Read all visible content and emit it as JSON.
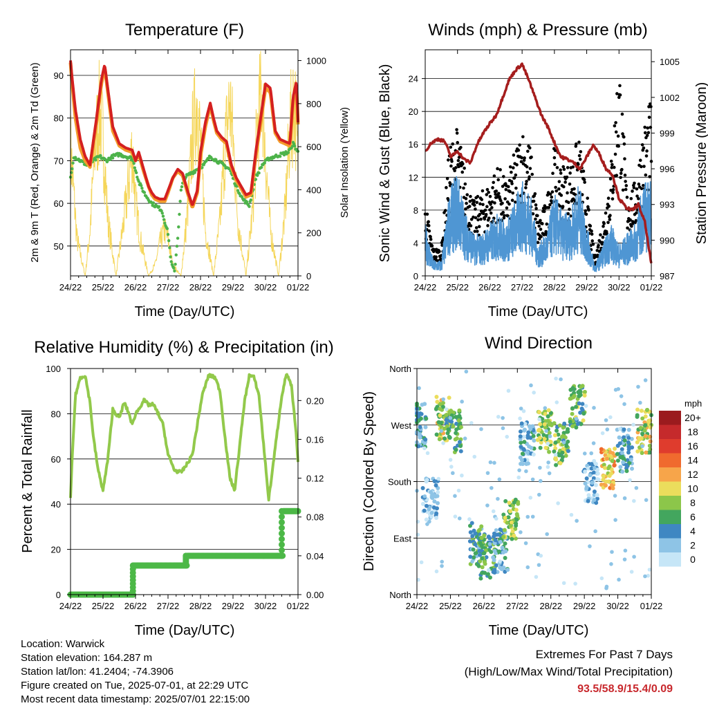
{
  "chart_data": [
    {
      "type": "line",
      "title": "Temperature (F)",
      "xlabel": "Time (Day/UTC)",
      "ylabel_left": "2m & 9m T (Red, Orange) & 2m Td (Green)",
      "ylabel_right": "Solar Insolation (Yellow)",
      "x_ticks": [
        "24/22",
        "25/22",
        "26/22",
        "27/22",
        "28/22",
        "29/22",
        "30/22",
        "01/22"
      ],
      "ylim_left": [
        43,
        96
      ],
      "y_ticks_left": [
        50,
        60,
        70,
        80,
        90
      ],
      "ylim_right": [
        0,
        1050
      ],
      "y_ticks_right": [
        0,
        200,
        400,
        600,
        800,
        1000
      ],
      "grid": true,
      "colors": {
        "t2m": "#d42020",
        "t9m": "#f49b2a",
        "dewpoint": "#4db34a",
        "solar": "#f5d65a"
      },
      "series": [
        {
          "name": "2m T",
          "x": [
            0,
            0.04,
            0.15,
            0.3,
            0.45,
            0.6,
            0.8,
            0.95,
            1.05,
            1.3,
            1.5,
            1.7,
            1.9,
            2.0,
            2.1,
            2.25,
            2.4,
            2.5,
            2.6,
            2.75,
            2.9,
            3.0,
            3.15,
            3.3,
            3.45,
            3.6,
            3.75,
            3.9,
            4.0,
            4.15,
            4.3,
            4.4,
            4.5,
            4.65,
            4.8,
            4.95,
            5.1,
            5.25,
            5.4,
            5.55,
            5.7,
            5.85,
            6.0,
            6.15,
            6.3,
            6.45,
            6.6,
            6.75,
            6.85,
            6.95,
            7.0
          ],
          "values": [
            93.5,
            90,
            82,
            75,
            71,
            69,
            80,
            89,
            92.5,
            78,
            74,
            73,
            72.5,
            70,
            72,
            68,
            64,
            62.5,
            61.5,
            61,
            61,
            63,
            66,
            68,
            67,
            63,
            59.5,
            63,
            72,
            79,
            83.5,
            80,
            77,
            75.5,
            74.5,
            69,
            66,
            64,
            62,
            62.5,
            72,
            80,
            88,
            87,
            77,
            75,
            74.5,
            74,
            85,
            88.5,
            79
          ]
        },
        {
          "name": "9m T",
          "x": [
            0,
            0.04,
            0.15,
            0.3,
            0.45,
            0.6,
            0.8,
            0.95,
            1.05,
            1.3,
            1.5,
            1.7,
            1.9,
            2.0,
            2.1,
            2.25,
            2.4,
            2.5,
            2.6,
            2.75,
            2.9,
            3.0,
            3.15,
            3.3,
            3.45,
            3.6,
            3.75,
            3.9,
            4.0,
            4.15,
            4.3,
            4.4,
            4.5,
            4.65,
            4.8,
            4.95,
            5.1,
            5.25,
            5.4,
            5.55,
            5.7,
            5.85,
            6.0,
            6.15,
            6.3,
            6.45,
            6.6,
            6.75,
            6.85,
            6.95,
            7.0
          ],
          "values": [
            93,
            89,
            80,
            73,
            70,
            68.5,
            79,
            88,
            92,
            77,
            73.5,
            72.5,
            72,
            70,
            71.5,
            67.5,
            64,
            62,
            61,
            60.5,
            60.5,
            62.5,
            66,
            67.5,
            66.5,
            62.5,
            59,
            62.5,
            71,
            78,
            83,
            79.5,
            76.5,
            75,
            74,
            68.5,
            65.5,
            63.5,
            61.5,
            62,
            71,
            79,
            87,
            86,
            76.5,
            74.5,
            74,
            73.5,
            84,
            88,
            78.5
          ]
        },
        {
          "name": "2m Td",
          "x": [
            0,
            0.1,
            0.3,
            0.5,
            0.7,
            0.9,
            1.1,
            1.3,
            1.5,
            1.7,
            1.9,
            2.0,
            2.1,
            2.3,
            2.5,
            2.7,
            2.8,
            3.0,
            3.1,
            3.2,
            3.3,
            3.4,
            3.5,
            3.7,
            3.9,
            4.1,
            4.3,
            4.5,
            4.7,
            4.9,
            5.1,
            5.3,
            5.5,
            5.7,
            5.9,
            6.1,
            6.3,
            6.5,
            6.7,
            6.85,
            7.0
          ],
          "values": [
            66,
            71,
            70,
            69,
            70,
            71,
            70,
            71,
            71.5,
            71,
            70.5,
            68,
            65,
            62,
            60,
            59,
            58.5,
            53,
            46,
            44,
            52,
            63,
            66,
            67,
            68,
            69,
            71,
            70,
            69,
            68,
            64,
            61,
            59.5,
            66,
            69,
            70.5,
            71,
            71.5,
            72,
            74,
            72
          ]
        },
        {
          "name": "Solar Insolation",
          "axis": "right",
          "x": [
            0,
            0.2,
            0.45,
            0.6,
            0.75,
            0.9,
            1.0,
            1.15,
            1.4,
            1.6,
            1.75,
            1.9,
            2.0,
            2.15,
            2.4,
            2.6,
            2.75,
            2.9,
            3.0,
            3.15,
            3.4,
            3.6,
            3.75,
            3.9,
            4.0,
            4.15,
            4.4,
            4.6,
            4.75,
            4.9,
            5.0,
            5.15,
            5.4,
            5.6,
            5.75,
            5.9,
            6.0,
            6.15,
            6.4,
            6.6,
            6.75,
            6.9,
            7.0
          ],
          "values": [
            700,
            200,
            0,
            250,
            700,
            900,
            750,
            300,
            0,
            250,
            450,
            700,
            400,
            200,
            0,
            60,
            180,
            250,
            200,
            60,
            0,
            350,
            750,
            980,
            700,
            250,
            0,
            300,
            700,
            950,
            750,
            300,
            0,
            350,
            800,
            1030,
            650,
            250,
            0,
            350,
            800,
            980,
            600
          ]
        }
      ]
    },
    {
      "type": "scatter",
      "title": "Winds (mph) & Pressure (mb)",
      "xlabel": "Time (Day/UTC)",
      "ylabel_left": "Sonic Wind & Gust (Blue, Black)",
      "ylabel_right": "Station Pressure (Maroon)",
      "x_ticks": [
        "24/22",
        "25/22",
        "26/22",
        "27/22",
        "28/22",
        "29/22",
        "30/22",
        "01/22"
      ],
      "ylim_left": [
        0,
        27.5
      ],
      "y_ticks_left": [
        0,
        4,
        8,
        12,
        16,
        20,
        24
      ],
      "ylim_right": [
        987,
        1006
      ],
      "y_ticks_right": [
        987,
        990,
        993,
        996,
        999,
        1002,
        1005
      ],
      "grid": true,
      "colors": {
        "wind": "#4f96d3",
        "gust": "#000000",
        "pressure": "#a51d1d"
      },
      "series": [
        {
          "name": "Sonic Wind",
          "x": [
            0,
            0.25,
            0.5,
            0.75,
            1.0,
            1.25,
            1.5,
            1.75,
            2.0,
            2.25,
            2.5,
            2.75,
            3.0,
            3.25,
            3.5,
            3.75,
            4.0,
            4.25,
            4.5,
            4.75,
            5.0,
            5.25,
            5.5,
            5.75,
            6.0,
            6.25,
            6.5,
            6.75,
            7.0
          ],
          "values": [
            5,
            1.5,
            1.5,
            8,
            10,
            6,
            4,
            4,
            5,
            6,
            5,
            7,
            9,
            8,
            3,
            4,
            8,
            6,
            6,
            9,
            5,
            1,
            3,
            5,
            3,
            4,
            5,
            9,
            9
          ]
        },
        {
          "name": "Gust",
          "x": [
            0,
            0.25,
            0.5,
            0.75,
            1.0,
            1.25,
            1.5,
            1.75,
            2.0,
            2.25,
            2.5,
            2.75,
            3.0,
            3.25,
            3.5,
            3.75,
            4.0,
            4.25,
            4.5,
            4.75,
            5.0,
            5.25,
            5.5,
            5.75,
            6.0,
            6.25,
            6.5,
            6.75,
            7.0
          ],
          "values": [
            8,
            3,
            3,
            14,
            16,
            11,
            8,
            9,
            10,
            12,
            10,
            13,
            16,
            14,
            6,
            8,
            14,
            12,
            12,
            15,
            9,
            2,
            6,
            12,
            24,
            9,
            10,
            16,
            19
          ]
        },
        {
          "name": "Station Pressure",
          "axis": "right",
          "x": [
            0,
            0.2,
            0.4,
            0.6,
            0.8,
            1.0,
            1.2,
            1.4,
            1.6,
            1.8,
            2.0,
            2.2,
            2.4,
            2.6,
            2.8,
            3.0,
            3.2,
            3.4,
            3.6,
            3.8,
            4.0,
            4.2,
            4.4,
            4.6,
            4.8,
            5.0,
            5.2,
            5.4,
            5.6,
            5.8,
            6.0,
            6.2,
            6.4,
            6.6,
            6.8,
            7.0
          ],
          "values": [
            997.5,
            998.2,
            998.5,
            998.3,
            997.0,
            997.5,
            996.8,
            996.5,
            998.0,
            999.0,
            999.8,
            1000.5,
            1002.0,
            1003.5,
            1004.3,
            1004.8,
            1003.5,
            1002.0,
            1000.5,
            999.5,
            998.2,
            997.0,
            996.8,
            996.5,
            996.0,
            997.0,
            998.0,
            997.2,
            996.0,
            995.5,
            993.5,
            992.8,
            992.5,
            993.0,
            991.5,
            988.0
          ]
        }
      ]
    },
    {
      "type": "line",
      "title": "Relative Humidity (%) & Precipitation (in)",
      "xlabel": "Time (Day/UTC)",
      "ylabel_left": "Percent & Total Rainfall",
      "ylim_left": [
        0,
        100
      ],
      "y_ticks_left": [
        0,
        20,
        40,
        60,
        80,
        100
      ],
      "ylim_right": [
        0,
        0.233
      ],
      "y_ticks_right": [
        "0.00",
        "0.04",
        "0.08",
        "0.12",
        "0.16",
        "0.20"
      ],
      "x_ticks": [
        "24/22",
        "25/22",
        "26/22",
        "27/22",
        "28/22",
        "29/22",
        "30/22",
        "01/22"
      ],
      "grid": true,
      "colors": {
        "rh": "#92c94b",
        "precip": "#4cb847"
      },
      "series": [
        {
          "name": "Relative Humidity",
          "x": [
            0,
            0.05,
            0.15,
            0.3,
            0.45,
            0.6,
            0.7,
            0.85,
            1.0,
            1.15,
            1.3,
            1.5,
            1.65,
            1.8,
            1.9,
            2.0,
            2.1,
            2.25,
            2.4,
            2.55,
            2.7,
            2.85,
            3.0,
            3.2,
            3.4,
            3.6,
            3.75,
            3.9,
            4.05,
            4.25,
            4.45,
            4.6,
            4.75,
            4.9,
            5.05,
            5.2,
            5.35,
            5.5,
            5.65,
            5.8,
            5.95,
            6.1,
            6.3,
            6.5,
            6.65,
            6.8,
            6.95,
            7.0
          ],
          "values": [
            42,
            60,
            88,
            96,
            97,
            85,
            70,
            55,
            46,
            60,
            82,
            78,
            85,
            80,
            75,
            80,
            82,
            86,
            84,
            84,
            80,
            75,
            62,
            55,
            54,
            58,
            62,
            75,
            88,
            97,
            96,
            90,
            70,
            52,
            46,
            65,
            85,
            97,
            96,
            88,
            65,
            42,
            65,
            88,
            98,
            92,
            70,
            58
          ]
        },
        {
          "name": "Total Rainfall",
          "axis": "right",
          "x": [
            0,
            1.9,
            1.95,
            2.1,
            3.5,
            3.6,
            6.45,
            6.55,
            7.0
          ],
          "values": [
            0,
            0,
            0.03,
            0.03,
            0.03,
            0.04,
            0.04,
            0.086,
            0.086
          ]
        }
      ]
    },
    {
      "type": "scatter",
      "title": "Wind Direction",
      "xlabel": "Time (Day/UTC)",
      "ylabel": "Direction (Colored By Speed)",
      "y_categories": [
        "North",
        "East",
        "South",
        "West",
        "North"
      ],
      "x_ticks": [
        "24/22",
        "25/22",
        "26/22",
        "27/22",
        "28/22",
        "29/22",
        "30/22",
        "01/22"
      ],
      "colorbar_title": "mph",
      "colorbar_labels": [
        "20+",
        "18",
        "16",
        "14",
        "12",
        "10",
        "8",
        "6",
        "4",
        "2",
        "0"
      ],
      "colorbar_colors": [
        "#9b1b1e",
        "#c52a2c",
        "#df3c2d",
        "#f06a2e",
        "#f7a54a",
        "#ebdd5c",
        "#8cc64a",
        "#43a65e",
        "#3f87c2",
        "#8ec4e6",
        "#c6e6f7"
      ],
      "clusters": [
        {
          "x": 0.05,
          "dir": 270,
          "speed": 4
        },
        {
          "x": 0.4,
          "dir": 150,
          "speed": 2
        },
        {
          "x": 0.8,
          "dir": 280,
          "speed": 9
        },
        {
          "x": 1.1,
          "dir": 260,
          "speed": 6
        },
        {
          "x": 1.8,
          "dir": 80,
          "speed": 5
        },
        {
          "x": 2.1,
          "dir": 60,
          "speed": 6
        },
        {
          "x": 2.5,
          "dir": 70,
          "speed": 4
        },
        {
          "x": 2.8,
          "dir": 120,
          "speed": 8
        },
        {
          "x": 3.3,
          "dir": 240,
          "speed": 3
        },
        {
          "x": 3.8,
          "dir": 260,
          "speed": 8
        },
        {
          "x": 4.3,
          "dir": 240,
          "speed": 7
        },
        {
          "x": 4.8,
          "dir": 300,
          "speed": 7
        },
        {
          "x": 5.2,
          "dir": 180,
          "speed": 2
        },
        {
          "x": 5.7,
          "dir": 200,
          "speed": 11
        },
        {
          "x": 6.2,
          "dir": 230,
          "speed": 4
        },
        {
          "x": 6.8,
          "dir": 260,
          "speed": 9
        }
      ]
    }
  ],
  "info": {
    "location": "Location: Warwick",
    "elevation": "Station elevation: 164.287 m",
    "latlon": "Station lat/lon: 41.2404; -74.3906",
    "created": "Figure created on Tue, 2025-07-01, at 22:29 UTC",
    "recent": "Most recent data timestamp: 2025/07/01 22:15:00"
  },
  "extremes": {
    "line1": "Extremes For Past 7 Days",
    "line2": "(High/Low/Max Wind/Total Precipitation)",
    "values": "93.5/58.9/15.4/0.09"
  }
}
